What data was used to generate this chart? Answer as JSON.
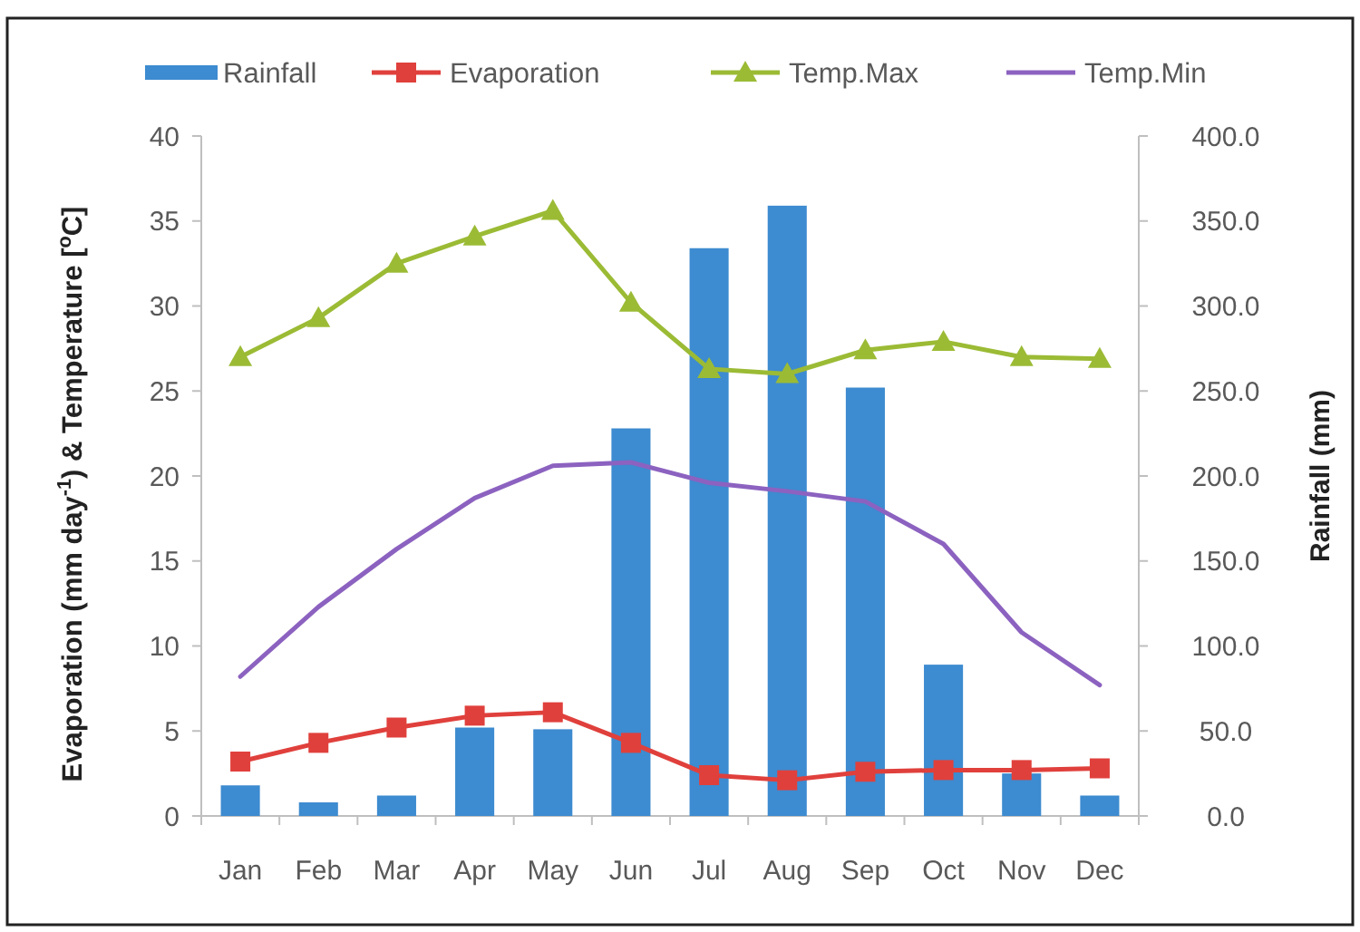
{
  "chart_data": {
    "type": "bar",
    "categories": [
      "Jan",
      "Feb",
      "Mar",
      "Apr",
      "May",
      "Jun",
      "Jul",
      "Aug",
      "Sep",
      "Oct",
      "Nov",
      "Dec"
    ],
    "ylabel": "Evaporation (mm day$^{-1}$) & Temperature [$^{o}$C]",
    "y2label": "Rainfall (mm)",
    "ylim": [
      0,
      40
    ],
    "yticks": [
      0,
      5,
      10,
      15,
      20,
      25,
      30,
      35,
      40
    ],
    "y2lim": [
      0,
      400
    ],
    "y2ticks": [
      {
        "value": 0,
        "label": "0.0"
      },
      {
        "value": 50,
        "label": "50.0"
      },
      {
        "value": 100,
        "label": "100.0"
      },
      {
        "value": 150,
        "label": "150.0"
      },
      {
        "value": 200,
        "label": "200.0"
      },
      {
        "value": 250,
        "label": "250.0"
      },
      {
        "value": 300,
        "label": "300.0"
      },
      {
        "value": 350,
        "label": "350.0"
      },
      {
        "value": 400,
        "label": "400.0"
      }
    ],
    "legend": "top",
    "line_style": "solid",
    "series": [
      {
        "name": "Rainfall",
        "axis": "y2",
        "color": "#3d8bd0",
        "values": [
          18,
          8,
          12,
          52,
          51,
          228,
          334,
          359,
          252,
          89,
          25,
          12
        ]
      },
      {
        "name": "Evaporation",
        "type": "line",
        "marker": "square",
        "color": "#e0403c",
        "values": [
          3.2,
          4.3,
          5.2,
          5.9,
          6.1,
          4.3,
          2.4,
          2.1,
          2.6,
          2.7,
          2.7,
          2.8
        ]
      },
      {
        "name": "Temp.Max",
        "type": "line",
        "marker": "triangle",
        "color": "#9bbb35",
        "values": [
          27.0,
          29.3,
          32.5,
          34.1,
          35.6,
          30.2,
          26.3,
          26.0,
          27.4,
          27.9,
          27.0,
          26.9
        ]
      },
      {
        "name": "Temp.Min",
        "type": "line",
        "marker": "none",
        "color": "#8c62c0",
        "values": [
          8.2,
          12.3,
          15.7,
          18.7,
          20.6,
          20.8,
          19.6,
          19.1,
          18.5,
          16.0,
          10.8,
          7.7
        ]
      }
    ]
  }
}
